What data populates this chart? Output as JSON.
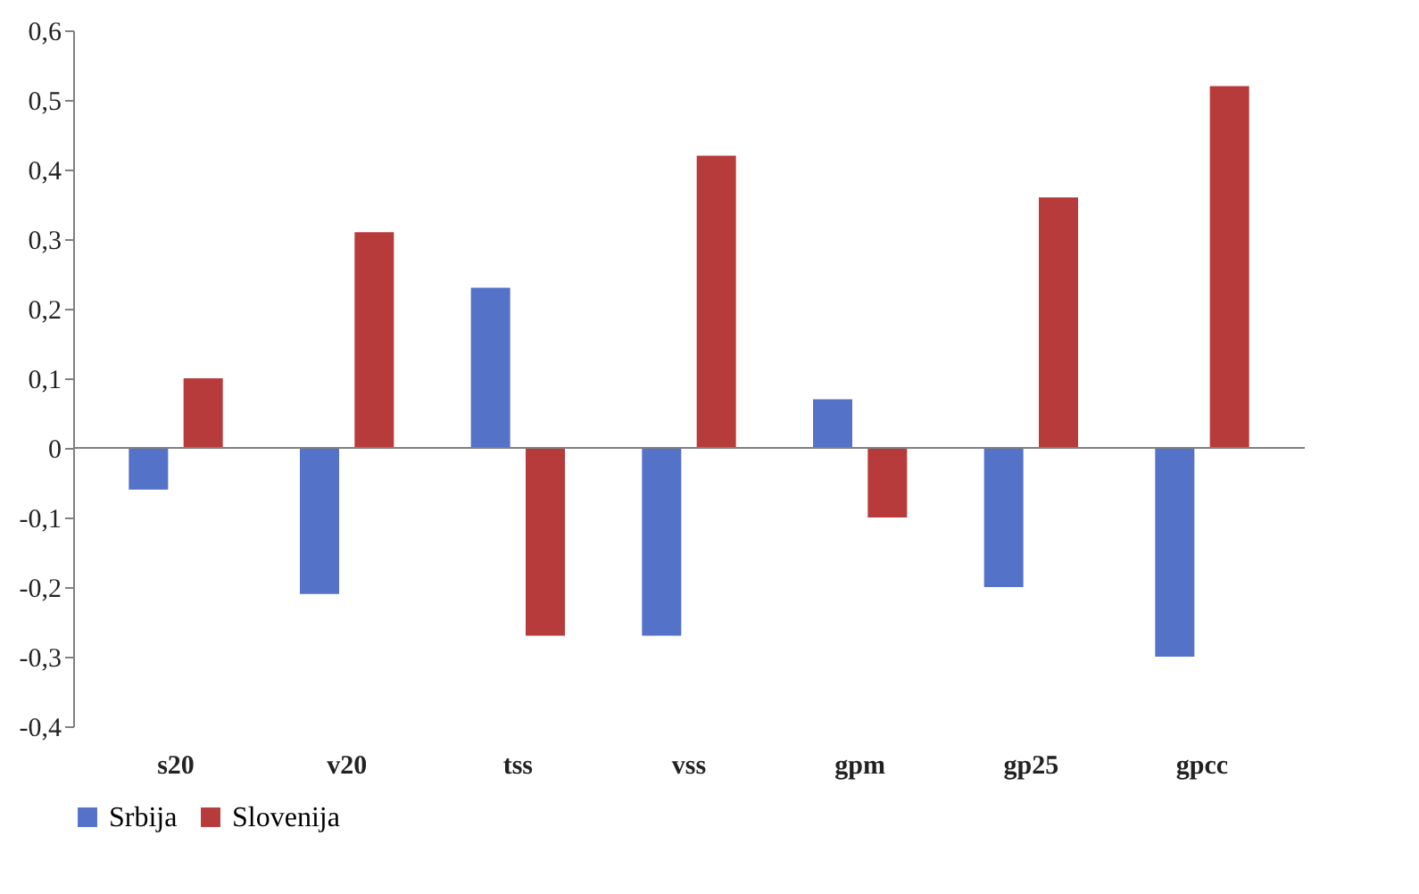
{
  "chart_data": {
    "type": "bar",
    "categories": [
      "s20",
      "v20",
      "tss",
      "vss",
      "gpm",
      "gp25",
      "gpcc"
    ],
    "series": [
      {
        "name": "Srbija",
        "color": "#5472c8",
        "values": [
          -0.06,
          -0.21,
          0.23,
          -0.27,
          0.07,
          -0.2,
          -0.3
        ]
      },
      {
        "name": "Slovenija",
        "color": "#b83b3b",
        "values": [
          0.1,
          0.31,
          -0.27,
          0.42,
          -0.1,
          0.36,
          0.52
        ]
      }
    ],
    "ylim": [
      -0.4,
      0.6
    ],
    "yticks": [
      {
        "value": -0.4,
        "label": "-0,4"
      },
      {
        "value": -0.3,
        "label": "-0,3"
      },
      {
        "value": -0.2,
        "label": "-0,2"
      },
      {
        "value": -0.1,
        "label": "-0,1"
      },
      {
        "value": 0,
        "label": "0"
      },
      {
        "value": 0.1,
        "label": "0,1"
      },
      {
        "value": 0.2,
        "label": "0,2"
      },
      {
        "value": 0.3,
        "label": "0,3"
      },
      {
        "value": 0.4,
        "label": "0,4"
      },
      {
        "value": 0.5,
        "label": "0,5"
      },
      {
        "value": 0.6,
        "label": "0,6"
      }
    ],
    "ref_lines": [
      {
        "axis": "y",
        "value": 0,
        "color": "#808080"
      }
    ],
    "grid": false,
    "legend": "bottom"
  }
}
